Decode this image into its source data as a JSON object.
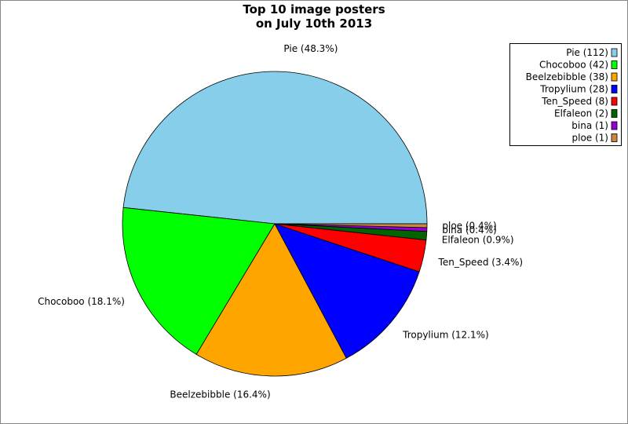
{
  "chart_data": {
    "type": "pie",
    "title": [
      "Top 10 image posters",
      "on July 10th 2013"
    ],
    "categories": [
      "Pie",
      "Chocoboo",
      "Beelzebibble",
      "Tropylium",
      "Ten_Speed",
      "Elfaleon",
      "bina",
      "ploe"
    ],
    "values": [
      48.3,
      18.1,
      16.4,
      12.1,
      3.4,
      0.9,
      0.4,
      0.4
    ],
    "value_labels": [
      "Pie (48.3%)",
      "Chocoboo (18.1%)",
      "Beelzebibble (16.4%)",
      "Tropylium (12.1%)",
      "Ten_Speed (3.4%)",
      "Elfaleon (0.9%)",
      "bina (0.4%)",
      "ploe (0.4%)"
    ],
    "legend_labels": [
      "Pie (112)",
      "Chocoboo (42)",
      "Beelzebibble (38)",
      "Tropylium (28)",
      "Ten_Speed (8)",
      "Elfaleon (2)",
      "bina (1)",
      "ploe (1)"
    ],
    "colors": [
      "#87ceeb",
      "#00ff00",
      "#ffa500",
      "#0000ff",
      "#ff0000",
      "#006400",
      "#9400d3",
      "#cd853f"
    ],
    "legend": "upper right"
  }
}
